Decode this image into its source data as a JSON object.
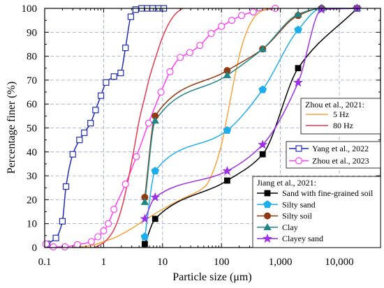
{
  "chart_data": {
    "type": "line",
    "xlabel": "Particle size (μm)",
    "ylabel": "Percentage finer (%)",
    "x_scale": "log",
    "xlim": [
      0.1,
      50000
    ],
    "ylim": [
      0,
      100
    ],
    "xticks": [
      0.1,
      1,
      10,
      100,
      1000,
      10000
    ],
    "xtick_labels": [
      "0.1",
      "1",
      "10",
      "100",
      "1,000",
      "10,000"
    ],
    "yticks": [
      0,
      10,
      20,
      30,
      40,
      50,
      60,
      70,
      80,
      90,
      100
    ],
    "ytick_labels": [
      "0",
      "10",
      "20",
      "30",
      "40",
      "50",
      "60",
      "70",
      "80",
      "90",
      "100"
    ],
    "grid": true,
    "series": [
      {
        "name": "Yang et al., 2022",
        "color": "#1f2bb5",
        "marker": "square-open",
        "points": [
          [
            0.11,
            1.5
          ],
          [
            0.155,
            4
          ],
          [
            0.2,
            11
          ],
          [
            0.23,
            25.5
          ],
          [
            0.3,
            39
          ],
          [
            0.39,
            45
          ],
          [
            0.47,
            48
          ],
          [
            0.6,
            52
          ],
          [
            0.73,
            57.5
          ],
          [
            0.9,
            63.5
          ],
          [
            1.1,
            69
          ],
          [
            1.5,
            71.5
          ],
          [
            1.95,
            73
          ],
          [
            2.35,
            83.5
          ],
          [
            2.9,
            96.5
          ],
          [
            3.5,
            99.5
          ],
          [
            4.4,
            100
          ],
          [
            5.5,
            100
          ],
          [
            6.8,
            100
          ],
          [
            8.5,
            100
          ],
          [
            10.5,
            100
          ]
        ]
      },
      {
        "name": "Zhou et al., 2023",
        "color": "#ff3df5",
        "marker": "circle-open",
        "points": [
          [
            0.105,
            1.5
          ],
          [
            0.14,
            0.3
          ],
          [
            0.22,
            0.3
          ],
          [
            0.36,
            1.2
          ],
          [
            0.62,
            2.5
          ],
          [
            0.8,
            4.5
          ],
          [
            1,
            7
          ],
          [
            1.2,
            10
          ],
          [
            1.5,
            16
          ],
          [
            2.35,
            26.5
          ],
          [
            3.6,
            38
          ],
          [
            5.8,
            52
          ],
          [
            9.4,
            65
          ],
          [
            13.4,
            73.5
          ],
          [
            20,
            79.5
          ],
          [
            29,
            81.5
          ],
          [
            43,
            84.5
          ],
          [
            67,
            89.5
          ],
          [
            100,
            92.5
          ],
          [
            150,
            95
          ],
          [
            220,
            97
          ],
          [
            345,
            98.5
          ],
          [
            820,
            100
          ]
        ]
      },
      {
        "name": "5 Hz",
        "color": "#f7a33a",
        "marker": "none",
        "points": [
          [
            0.3,
            0
          ],
          [
            0.5,
            0.5
          ],
          [
            0.7,
            1.2
          ],
          [
            1,
            2.5
          ],
          [
            1.5,
            4
          ],
          [
            2,
            5.5
          ],
          [
            3,
            8
          ],
          [
            5,
            11.5
          ],
          [
            10,
            16
          ],
          [
            20,
            20
          ],
          [
            40,
            23.5
          ],
          [
            55,
            26
          ],
          [
            70,
            31
          ],
          [
            100,
            43
          ],
          [
            130,
            57
          ],
          [
            170,
            72
          ],
          [
            220,
            84
          ],
          [
            300,
            93
          ],
          [
            400,
            97.5
          ],
          [
            550,
            99.5
          ],
          [
            800,
            100
          ]
        ]
      },
      {
        "name": "80 Hz",
        "color": "#e8384f",
        "marker": "none",
        "points": [
          [
            0.7,
            0
          ],
          [
            1,
            2
          ],
          [
            1.3,
            5
          ],
          [
            1.6,
            9
          ],
          [
            2,
            16
          ],
          [
            2.5,
            26
          ],
          [
            3,
            36
          ],
          [
            3.5,
            45
          ],
          [
            4,
            53
          ],
          [
            5,
            63
          ],
          [
            6,
            71
          ],
          [
            8,
            81
          ],
          [
            10,
            88
          ],
          [
            13,
            94
          ],
          [
            17,
            98
          ],
          [
            22,
            100
          ]
        ]
      },
      {
        "name": "Sand with fine-grained soil",
        "color": "#000000",
        "marker": "square",
        "points": [
          [
            5,
            1.5
          ],
          [
            7.5,
            12
          ],
          [
            125,
            28
          ],
          [
            500,
            39
          ],
          [
            2000,
            75
          ],
          [
            20000,
            100
          ]
        ]
      },
      {
        "name": "Silty sand",
        "color": "#1cadea",
        "marker": "pentagon",
        "points": [
          [
            5,
            4.5
          ],
          [
            7.5,
            32
          ],
          [
            125,
            49
          ],
          [
            500,
            66
          ],
          [
            2000,
            91
          ],
          [
            5000,
            100
          ],
          [
            20000,
            100
          ]
        ]
      },
      {
        "name": "Silty soil",
        "color": "#8f3a10",
        "marker": "circle",
        "points": [
          [
            5,
            21
          ],
          [
            7.5,
            55
          ],
          [
            125,
            74
          ],
          [
            500,
            83
          ],
          [
            2000,
            97
          ],
          [
            5000,
            100
          ],
          [
            20000,
            100
          ]
        ]
      },
      {
        "name": "Clay",
        "color": "#1f8585",
        "marker": "triangle",
        "points": [
          [
            5,
            19
          ],
          [
            7.5,
            53
          ],
          [
            125,
            72
          ],
          [
            500,
            83
          ],
          [
            2000,
            97.5
          ],
          [
            5000,
            100
          ],
          [
            20000,
            100
          ]
        ]
      },
      {
        "name": "Clayey sand",
        "color": "#9b30e6",
        "marker": "star",
        "points": [
          [
            5,
            12
          ],
          [
            7.5,
            21
          ],
          [
            125,
            32
          ],
          [
            500,
            43
          ],
          [
            2000,
            69
          ],
          [
            5000,
            99.5
          ],
          [
            20000,
            100
          ]
        ]
      }
    ],
    "legends": [
      {
        "placement": "center-right",
        "header": "Zhou et al., 2021:",
        "series": [
          2,
          3
        ]
      },
      {
        "placement": "right",
        "series": [
          0,
          1
        ]
      },
      {
        "placement": "bottom-right",
        "header": "Jiang et al., 2021:",
        "series": [
          4,
          5,
          6,
          7,
          8
        ]
      }
    ]
  }
}
